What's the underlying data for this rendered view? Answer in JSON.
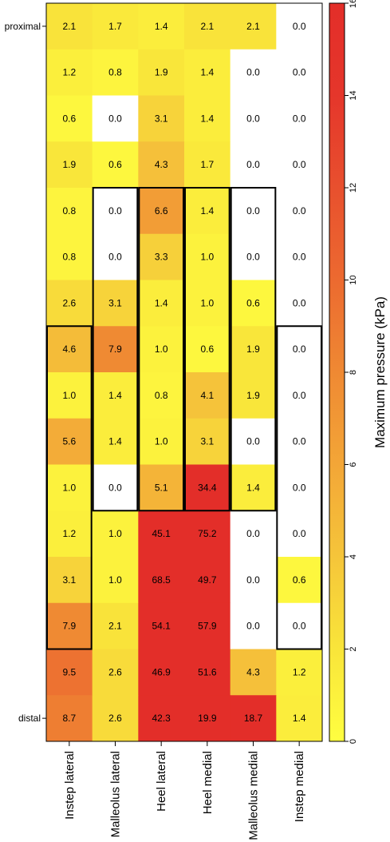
{
  "chart_data": {
    "type": "heatmap",
    "columns": [
      "Instep lateral",
      "Malleolus lateral",
      "Heel lateral",
      "Heel medial",
      "Malleolus medial",
      "Instep medial"
    ],
    "row_labels": [
      "proximal",
      "",
      "",
      "",
      "",
      "",
      "",
      "",
      "",
      "",
      "",
      "",
      "",
      "",
      "",
      "distal"
    ],
    "values": [
      [
        2.1,
        1.7,
        1.4,
        2.1,
        2.1,
        0.0
      ],
      [
        1.2,
        0.8,
        1.9,
        1.4,
        0.0,
        0.0
      ],
      [
        0.6,
        0.0,
        3.1,
        1.4,
        0.0,
        0.0
      ],
      [
        1.9,
        0.6,
        4.3,
        1.7,
        0.0,
        0.0
      ],
      [
        0.8,
        0.0,
        6.6,
        1.4,
        0.0,
        0.0
      ],
      [
        0.8,
        0.0,
        3.3,
        1.0,
        0.0,
        0.0
      ],
      [
        2.6,
        3.1,
        1.4,
        1.0,
        0.6,
        0.0
      ],
      [
        4.6,
        7.9,
        1.0,
        0.6,
        1.9,
        0.0
      ],
      [
        1.0,
        1.4,
        0.8,
        4.1,
        1.9,
        0.0
      ],
      [
        5.6,
        1.4,
        1.0,
        3.1,
        0.0,
        0.0
      ],
      [
        1.0,
        0.0,
        5.1,
        34.4,
        1.4,
        0.0
      ],
      [
        1.2,
        1.0,
        45.1,
        75.2,
        0.0,
        0.0
      ],
      [
        3.1,
        1.0,
        68.5,
        49.7,
        0.0,
        0.6
      ],
      [
        7.9,
        2.1,
        54.1,
        57.9,
        0.0,
        0.0
      ],
      [
        9.5,
        2.6,
        46.9,
        51.6,
        4.3,
        1.2
      ],
      [
        8.7,
        2.6,
        42.3,
        19.9,
        18.7,
        1.4
      ]
    ],
    "colorbar": {
      "label": "Maximum pressure (kPa)",
      "range": [
        0,
        16
      ],
      "ticks": [
        "0",
        "2",
        "4",
        "6",
        "8",
        "10",
        "12",
        "14",
        "16"
      ],
      "colors": [
        "#ffffff",
        "#fffe40",
        "#f9e53a",
        "#f5c53a",
        "#f3a637",
        "#ef8933",
        "#ec6a30",
        "#e8502e",
        "#e5362b",
        "#e32e29"
      ]
    },
    "outlined_regions": [
      {
        "name": "instep-lateral",
        "col_start": 0,
        "col_end": 0,
        "row_start": 7,
        "row_end": 13
      },
      {
        "name": "malleolus-lateral",
        "col_start": 1,
        "col_end": 1,
        "row_start": 4,
        "row_end": 10
      },
      {
        "name": "heel-lateral",
        "col_start": 2,
        "col_end": 2,
        "row_start": 4,
        "row_end": 10
      },
      {
        "name": "heel-medial",
        "col_start": 3,
        "col_end": 3,
        "row_start": 4,
        "row_end": 10
      },
      {
        "name": "malleolus-medial",
        "col_start": 4,
        "col_end": 4,
        "row_start": 4,
        "row_end": 10
      },
      {
        "name": "instep-medial",
        "col_start": 5,
        "col_end": 5,
        "row_start": 7,
        "row_end": 13
      }
    ]
  }
}
